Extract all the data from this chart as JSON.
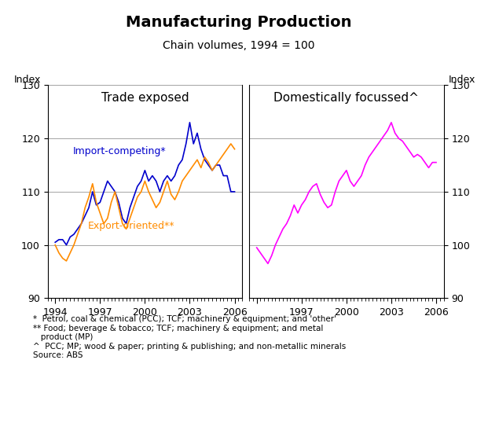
{
  "title": "Manufacturing Production",
  "subtitle": "Chain volumes, 1994 = 100",
  "left_panel_label": "Trade exposed",
  "right_panel_label": "Domestically focussed^",
  "ylabel_left": "Index",
  "ylabel_right": "Index",
  "ylim": [
    90,
    130
  ],
  "yticks": [
    90,
    100,
    110,
    120,
    130
  ],
  "xlim_left": [
    1993.5,
    2006.5
  ],
  "xlim_right": [
    1993.5,
    2006.5
  ],
  "left_xticks": [
    1994,
    1997,
    2000,
    2003,
    2006
  ],
  "right_xticks": [
    1997,
    2000,
    2003,
    2006
  ],
  "left_xticklabels": [
    "1994",
    "1997",
    "2000",
    "2003",
    "2006"
  ],
  "right_xticklabels": [
    "1997",
    "2000",
    "2003",
    "2006"
  ],
  "footnotes": "*  Petrol, coal & chemical (PCC); TCF; machinery & equipment; and 'other'\n** Food; beverage & tobacco; TCF; machinery & equipment; and metal\n   product (MP)\n^  PCC; MP; wood & paper; printing & publishing; and non-metallic minerals\nSource: ABS",
  "import_competing_color": "#0000CC",
  "export_oriented_color": "#FF8C00",
  "domestic_color": "#FF00FF",
  "import_competing_label": "Import-competing*",
  "export_oriented_label": "Export-oriented**",
  "import_competing_x": [
    1994.0,
    1994.25,
    1994.5,
    1994.75,
    1995.0,
    1995.25,
    1995.5,
    1995.75,
    1996.0,
    1996.25,
    1996.5,
    1996.75,
    1997.0,
    1997.25,
    1997.5,
    1997.75,
    1998.0,
    1998.25,
    1998.5,
    1998.75,
    1999.0,
    1999.25,
    1999.5,
    1999.75,
    2000.0,
    2000.25,
    2000.5,
    2000.75,
    2001.0,
    2001.25,
    2001.5,
    2001.75,
    2002.0,
    2002.25,
    2002.5,
    2002.75,
    2003.0,
    2003.25,
    2003.5,
    2003.75,
    2004.0,
    2004.25,
    2004.5,
    2004.75,
    2005.0,
    2005.25,
    2005.5,
    2005.75,
    2006.0
  ],
  "import_competing_y": [
    100.5,
    101,
    101,
    100,
    101.5,
    102,
    103,
    104,
    105.5,
    107,
    110,
    107.5,
    108,
    110,
    112,
    111,
    110,
    108,
    105,
    104,
    107,
    109,
    111,
    112,
    114,
    112,
    113,
    112,
    110,
    112,
    113,
    112,
    113,
    115,
    116,
    119,
    123,
    119,
    121,
    118,
    116,
    115,
    114,
    115,
    115,
    113,
    113,
    110,
    110
  ],
  "export_oriented_x": [
    1994.0,
    1994.25,
    1994.5,
    1994.75,
    1995.0,
    1995.25,
    1995.5,
    1995.75,
    1996.0,
    1996.25,
    1996.5,
    1996.75,
    1997.0,
    1997.25,
    1997.5,
    1997.75,
    1998.0,
    1998.25,
    1998.5,
    1998.75,
    1999.0,
    1999.25,
    1999.5,
    1999.75,
    2000.0,
    2000.25,
    2000.5,
    2000.75,
    2001.0,
    2001.25,
    2001.5,
    2001.75,
    2002.0,
    2002.25,
    2002.5,
    2002.75,
    2003.0,
    2003.25,
    2003.5,
    2003.75,
    2004.0,
    2004.25,
    2004.5,
    2004.75,
    2005.0,
    2005.25,
    2005.5,
    2005.75,
    2006.0
  ],
  "export_oriented_y": [
    100,
    98.5,
    97.5,
    97,
    98.5,
    100,
    102,
    104,
    107,
    109,
    111.5,
    108,
    106,
    104,
    105,
    108,
    110,
    107,
    104,
    103,
    105,
    107,
    109,
    110,
    112,
    110,
    108.5,
    107,
    108,
    110,
    112,
    109.5,
    108.5,
    110,
    112,
    113,
    114,
    115,
    116,
    114.5,
    116.5,
    115.5,
    114,
    115,
    116,
    117,
    118,
    119,
    118
  ],
  "domestic_x": [
    1994.0,
    1994.25,
    1994.5,
    1994.75,
    1995.0,
    1995.25,
    1995.5,
    1995.75,
    1996.0,
    1996.25,
    1996.5,
    1996.75,
    1997.0,
    1997.25,
    1997.5,
    1997.75,
    1998.0,
    1998.25,
    1998.5,
    1998.75,
    1999.0,
    1999.25,
    1999.5,
    1999.75,
    2000.0,
    2000.25,
    2000.5,
    2000.75,
    2001.0,
    2001.25,
    2001.5,
    2001.75,
    2002.0,
    2002.25,
    2002.5,
    2002.75,
    2003.0,
    2003.25,
    2003.5,
    2003.75,
    2004.0,
    2004.25,
    2004.5,
    2004.75,
    2005.0,
    2005.25,
    2005.5,
    2005.75,
    2006.0
  ],
  "domestic_y": [
    99.5,
    98.5,
    97.5,
    96.5,
    98,
    100,
    101.5,
    103,
    104,
    105.5,
    107.5,
    106,
    107.5,
    108.5,
    110,
    111,
    111.5,
    109.5,
    108,
    107,
    107.5,
    110,
    112,
    113,
    114,
    112,
    111,
    112,
    113,
    115,
    116.5,
    117.5,
    118.5,
    119.5,
    120.5,
    121.5,
    123,
    121,
    120,
    119.5,
    118.5,
    117.5,
    116.5,
    117,
    116.5,
    115.5,
    114.5,
    115.5,
    115.5
  ]
}
